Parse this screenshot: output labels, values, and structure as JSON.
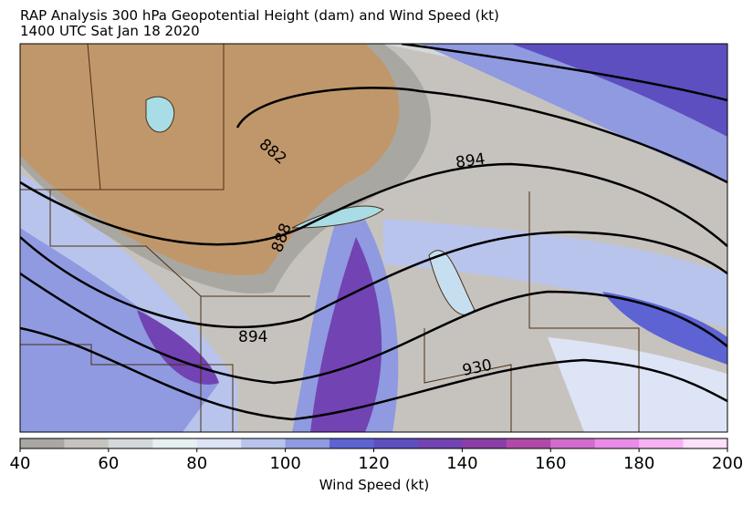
{
  "header": {
    "title": "RAP Analysis 300 hPa Geopotential Height (dam) and Wind Speed (kt)",
    "subtitle": "1400 UTC Sat Jan 18 2020"
  },
  "map": {
    "contour_labels": [
      "882",
      "888",
      "894",
      "894",
      "930"
    ]
  },
  "colorbar": {
    "range": [
      40,
      200
    ],
    "ticks": [
      40,
      60,
      80,
      100,
      120,
      140,
      160,
      180,
      200
    ],
    "label": "Wind Speed (kt)",
    "colors": [
      "#a9a7a2",
      "#c6c3bf",
      "#d3d8da",
      "#e6eff1",
      "#dde4f5",
      "#b8c4ec",
      "#8f9ae0",
      "#5d63d2",
      "#5d4fc0",
      "#7243b2",
      "#8b3ea6",
      "#b04aa8",
      "#cf6ccd",
      "#e98be8",
      "#f7b2f3",
      "#fde0fb"
    ]
  }
}
